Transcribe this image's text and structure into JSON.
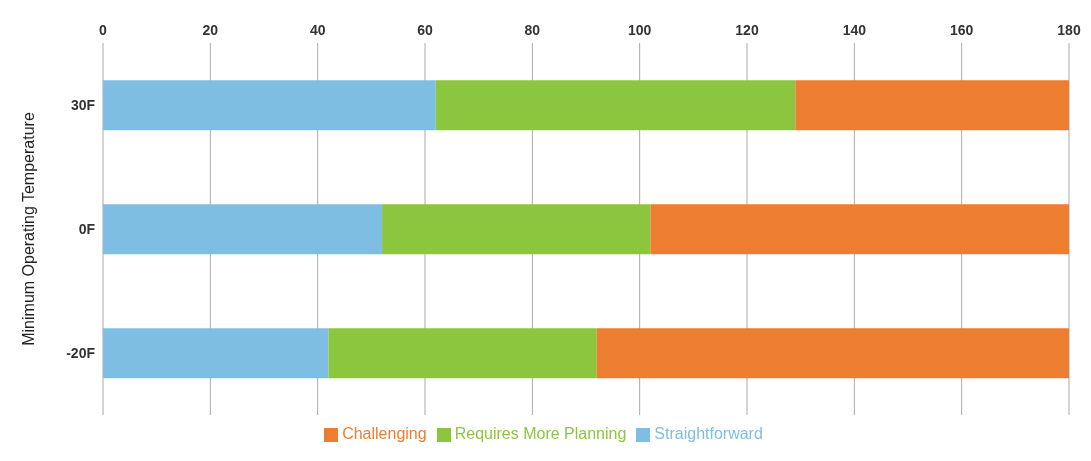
{
  "chart_data": {
    "type": "bar",
    "orientation": "horizontal",
    "stacked": true,
    "ylabel": "Minimum Operating Temperature",
    "categories": [
      "30F",
      "0F",
      "-20F"
    ],
    "series": [
      {
        "name": "Straightforward",
        "color": "#7fbee3",
        "values": [
          62,
          52,
          42
        ]
      },
      {
        "name": "Requires More Planning",
        "color": "#8cc63f",
        "values": [
          67,
          50,
          50
        ]
      },
      {
        "name": "Challenging",
        "color": "#ed7d31",
        "values": [
          51,
          78,
          88
        ]
      }
    ],
    "xlim": [
      0,
      180
    ],
    "xticks": [
      0,
      20,
      40,
      60,
      80,
      100,
      120,
      140,
      160,
      180
    ],
    "grid": "x",
    "legend": "bottom"
  }
}
